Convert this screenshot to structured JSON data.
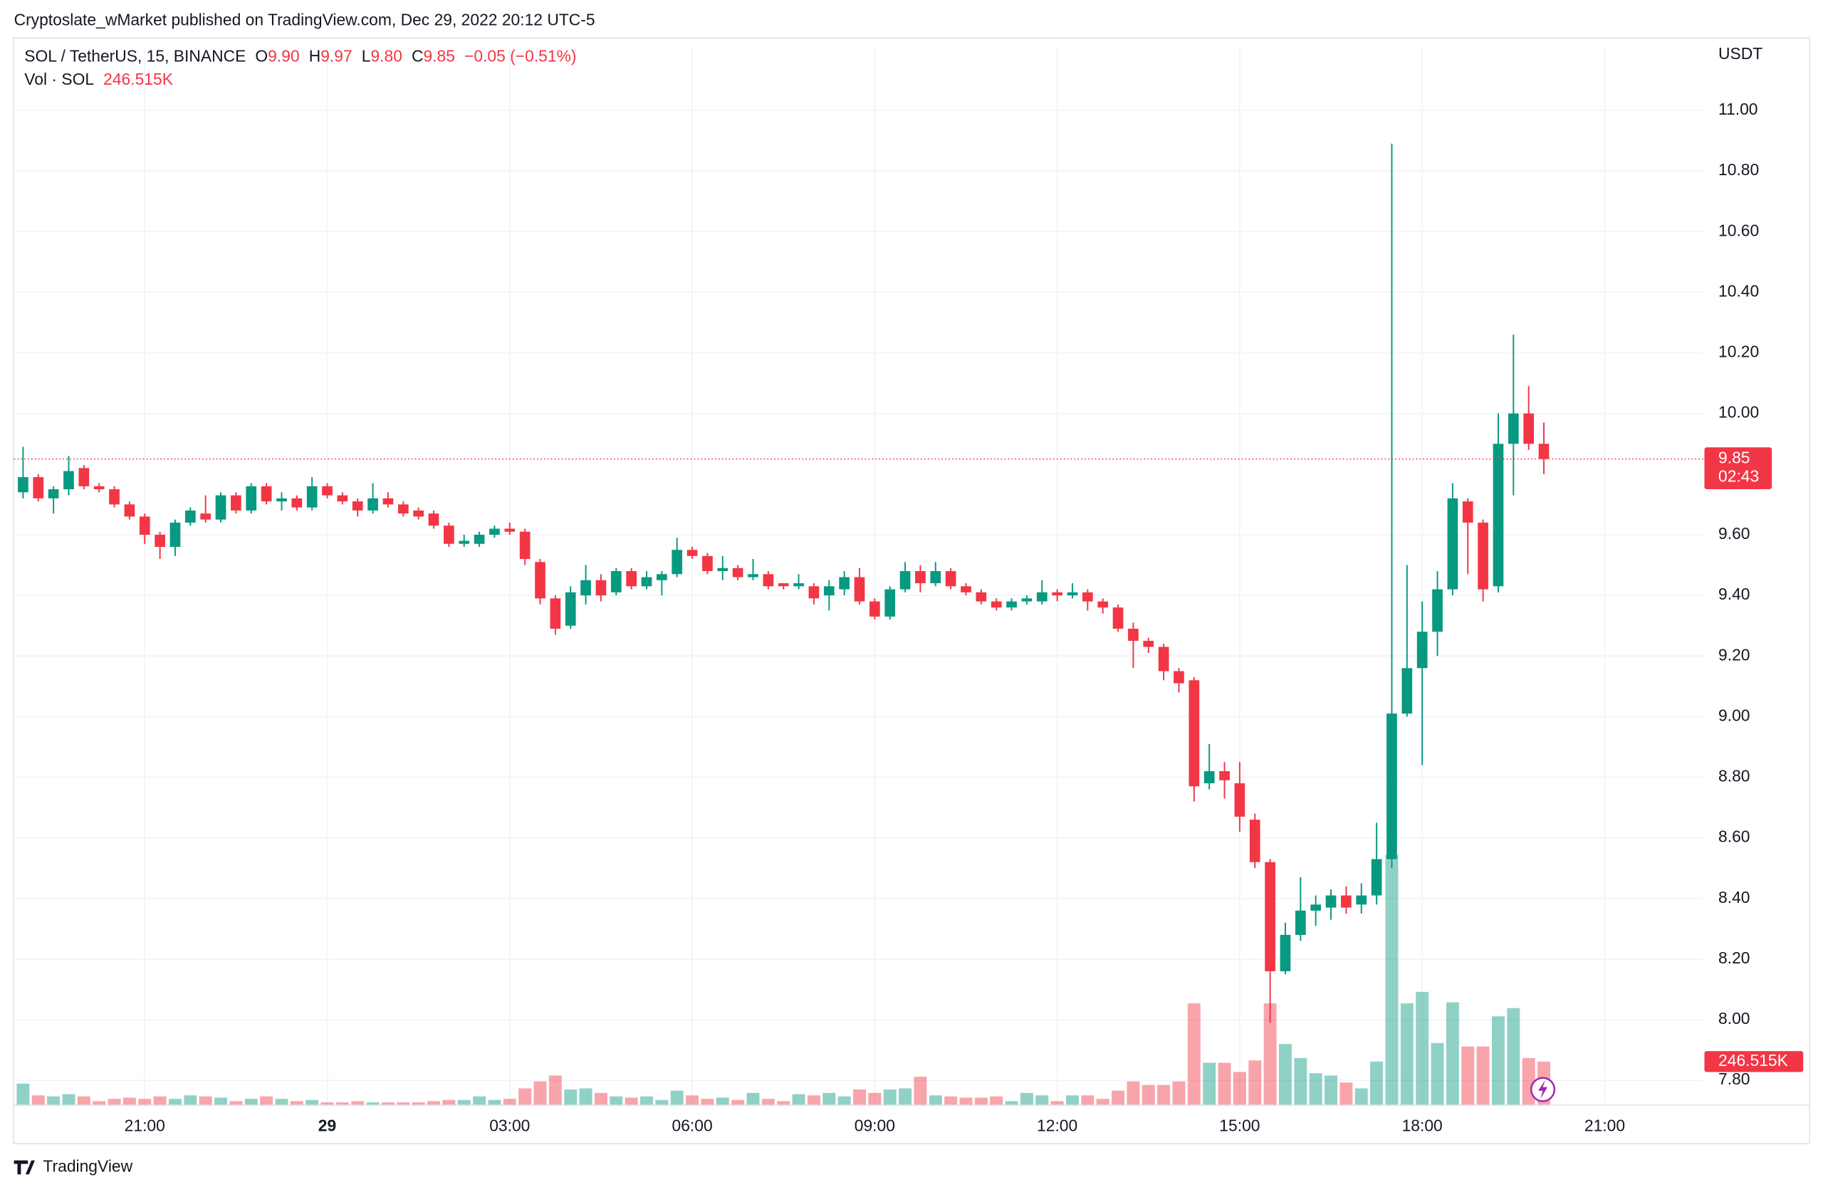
{
  "chart_data": {
    "type": "candlestick",
    "publisher": "Cryptoslate_wMarket published on TradingView.com, Dec 29, 2022 20:12 UTC-5",
    "symbol": "SOL / TetherUS, 15, BINANCE",
    "ohlc": [
      {
        "key": "O",
        "value": "9.90"
      },
      {
        "key": "H",
        "value": "9.97"
      },
      {
        "key": "L",
        "value": "9.80"
      },
      {
        "key": "C",
        "value": "9.85"
      }
    ],
    "change": "−0.05 (−0.51%)",
    "volume_name": "Vol · SOL",
    "volume_value": "246.515K",
    "currency": "USDT",
    "last_price": {
      "value": 9.85,
      "label": "9.85"
    },
    "countdown": "02:43",
    "brand": "TradingView",
    "up_color": "#089981",
    "down_color": "#f23645",
    "grid": true,
    "xlim": [
      18.85,
      46.62
    ],
    "ylim": [
      7.72,
      11.21
    ],
    "xticks": [
      {
        "value": 21,
        "label": "21:00"
      },
      {
        "value": 24,
        "label": "29"
      },
      {
        "value": 27,
        "label": "03:00"
      },
      {
        "value": 30,
        "label": "06:00"
      },
      {
        "value": 33,
        "label": "09:00"
      },
      {
        "value": 36,
        "label": "12:00"
      },
      {
        "value": 39,
        "label": "15:00"
      },
      {
        "value": 42,
        "label": "18:00"
      },
      {
        "value": 45,
        "label": "21:00"
      }
    ],
    "yticks": [
      {
        "value": 7.8,
        "label": "7.80"
      },
      {
        "value": 8.0,
        "label": "8.00"
      },
      {
        "value": 8.2,
        "label": "8.20"
      },
      {
        "value": 8.4,
        "label": "8.40"
      },
      {
        "value": 8.6,
        "label": "8.60"
      },
      {
        "value": 8.8,
        "label": "8.80"
      },
      {
        "value": 9.0,
        "label": "9.00"
      },
      {
        "value": 9.2,
        "label": "9.20"
      },
      {
        "value": 9.4,
        "label": "9.40"
      },
      {
        "value": 9.6,
        "label": "9.60"
      },
      {
        "value": 10.0,
        "label": "10.00"
      },
      {
        "value": 10.2,
        "label": "10.20"
      },
      {
        "value": 10.4,
        "label": "10.40"
      },
      {
        "value": 10.6,
        "label": "10.60"
      },
      {
        "value": 10.8,
        "label": "10.80"
      },
      {
        "value": 11.0,
        "label": "11.00"
      }
    ],
    "x": [
      19,
      19.25,
      19.5,
      19.75,
      20,
      20.25,
      20.5,
      20.75,
      21,
      21.25,
      21.5,
      21.75,
      22,
      22.25,
      22.5,
      22.75,
      23,
      23.25,
      23.5,
      23.75,
      24,
      24.25,
      24.5,
      24.75,
      25,
      25.25,
      25.5,
      25.75,
      26,
      26.25,
      26.5,
      26.75,
      27,
      27.25,
      27.5,
      27.75,
      28,
      28.25,
      28.5,
      28.75,
      29,
      29.25,
      29.5,
      29.75,
      30,
      30.25,
      30.5,
      30.75,
      31,
      31.25,
      31.5,
      31.75,
      32,
      32.25,
      32.5,
      32.75,
      33,
      33.25,
      33.5,
      33.75,
      34,
      34.25,
      34.5,
      34.75,
      35,
      35.25,
      35.5,
      35.75,
      36,
      36.25,
      36.5,
      36.75,
      37,
      37.25,
      37.5,
      37.75,
      38,
      38.25,
      38.5,
      38.75,
      39,
      39.25,
      39.5,
      39.75,
      40,
      40.25,
      40.5,
      40.75,
      41,
      41.25,
      41.5,
      41.75,
      42,
      42.25,
      42.5,
      42.75,
      43,
      43.25,
      43.5,
      43.75,
      44
    ],
    "open": [
      9.74,
      9.79,
      9.72,
      9.75,
      9.82,
      9.76,
      9.75,
      9.7,
      9.66,
      9.6,
      9.56,
      9.64,
      9.67,
      9.65,
      9.73,
      9.68,
      9.76,
      9.71,
      9.72,
      9.69,
      9.76,
      9.73,
      9.71,
      9.68,
      9.72,
      9.7,
      9.68,
      9.67,
      9.63,
      9.57,
      9.57,
      9.6,
      9.62,
      9.61,
      9.51,
      9.39,
      9.3,
      9.4,
      9.45,
      9.41,
      9.48,
      9.43,
      9.45,
      9.47,
      9.55,
      9.53,
      9.48,
      9.49,
      9.46,
      9.47,
      9.44,
      9.43,
      9.43,
      9.4,
      9.42,
      9.46,
      9.38,
      9.33,
      9.42,
      9.48,
      9.44,
      9.48,
      9.43,
      9.41,
      9.38,
      9.36,
      9.38,
      9.38,
      9.41,
      9.4,
      9.41,
      9.38,
      9.36,
      9.29,
      9.25,
      9.23,
      9.15,
      9.12,
      8.78,
      8.82,
      8.78,
      8.66,
      8.52,
      8.16,
      8.28,
      8.36,
      8.37,
      8.41,
      8.38,
      8.41,
      8.53,
      9.01,
      9.16,
      9.28,
      9.42,
      9.71,
      9.64,
      9.43,
      9.9,
      10.0,
      9.9
    ],
    "high": [
      9.89,
      9.8,
      9.76,
      9.86,
      9.83,
      9.77,
      9.76,
      9.71,
      9.67,
      9.61,
      9.65,
      9.69,
      9.73,
      9.74,
      9.74,
      9.77,
      9.77,
      9.74,
      9.73,
      9.79,
      9.77,
      9.74,
      9.72,
      9.77,
      9.74,
      9.71,
      9.69,
      9.68,
      9.64,
      9.6,
      9.61,
      9.63,
      9.64,
      9.62,
      9.52,
      9.4,
      9.43,
      9.5,
      9.47,
      9.49,
      9.49,
      9.48,
      9.48,
      9.59,
      9.56,
      9.54,
      9.53,
      9.5,
      9.52,
      9.48,
      9.44,
      9.47,
      9.44,
      9.45,
      9.48,
      9.49,
      9.39,
      9.43,
      9.51,
      9.5,
      9.51,
      9.49,
      9.44,
      9.42,
      9.39,
      9.39,
      9.4,
      9.45,
      9.42,
      9.44,
      9.42,
      9.39,
      9.37,
      9.31,
      9.26,
      9.24,
      9.16,
      9.13,
      8.91,
      8.85,
      8.85,
      8.68,
      8.53,
      8.32,
      8.47,
      8.41,
      8.43,
      8.44,
      8.45,
      8.65,
      10.89,
      9.5,
      9.38,
      9.48,
      9.77,
      9.72,
      9.65,
      10.0,
      10.26,
      10.09,
      9.97
    ],
    "low": [
      9.72,
      9.71,
      9.67,
      9.73,
      9.75,
      9.74,
      9.69,
      9.65,
      9.57,
      9.52,
      9.53,
      9.63,
      9.64,
      9.64,
      9.67,
      9.67,
      9.7,
      9.68,
      9.68,
      9.68,
      9.72,
      9.7,
      9.66,
      9.67,
      9.69,
      9.66,
      9.65,
      9.62,
      9.56,
      9.56,
      9.56,
      9.59,
      9.6,
      9.5,
      9.37,
      9.27,
      9.29,
      9.37,
      9.38,
      9.4,
      9.42,
      9.42,
      9.4,
      9.46,
      9.52,
      9.47,
      9.45,
      9.45,
      9.45,
      9.42,
      9.42,
      9.42,
      9.37,
      9.35,
      9.4,
      9.37,
      9.32,
      9.32,
      9.41,
      9.41,
      9.43,
      9.42,
      9.4,
      9.37,
      9.35,
      9.35,
      9.37,
      9.37,
      9.38,
      9.39,
      9.35,
      9.34,
      9.28,
      9.16,
      9.21,
      9.12,
      9.08,
      8.72,
      8.76,
      8.73,
      8.62,
      8.5,
      7.99,
      8.15,
      8.26,
      8.31,
      8.33,
      8.35,
      8.35,
      8.38,
      8.5,
      9.0,
      8.84,
      9.2,
      9.4,
      9.47,
      9.38,
      9.41,
      9.73,
      9.88,
      9.8
    ],
    "close": [
      9.79,
      9.72,
      9.75,
      9.81,
      9.76,
      9.75,
      9.7,
      9.66,
      9.6,
      9.56,
      9.64,
      9.68,
      9.65,
      9.73,
      9.68,
      9.76,
      9.71,
      9.72,
      9.69,
      9.76,
      9.73,
      9.71,
      9.68,
      9.72,
      9.7,
      9.67,
      9.66,
      9.63,
      9.57,
      9.58,
      9.6,
      9.62,
      9.61,
      9.52,
      9.39,
      9.29,
      9.41,
      9.45,
      9.4,
      9.48,
      9.43,
      9.46,
      9.47,
      9.55,
      9.53,
      9.48,
      9.49,
      9.46,
      9.47,
      9.43,
      9.43,
      9.44,
      9.39,
      9.43,
      9.46,
      9.38,
      9.33,
      9.42,
      9.48,
      9.44,
      9.48,
      9.43,
      9.41,
      9.38,
      9.36,
      9.38,
      9.39,
      9.41,
      9.4,
      9.41,
      9.38,
      9.36,
      9.29,
      9.25,
      9.23,
      9.15,
      9.11,
      8.77,
      8.82,
      8.79,
      8.67,
      8.52,
      8.16,
      8.28,
      8.36,
      8.38,
      8.41,
      8.37,
      8.41,
      8.53,
      9.01,
      9.16,
      9.28,
      9.42,
      9.72,
      9.64,
      9.42,
      9.9,
      10.0,
      9.9,
      9.85
    ],
    "volume": [
      120000,
      53000,
      47000,
      60000,
      47000,
      20000,
      33000,
      40000,
      33000,
      47000,
      33000,
      53000,
      47000,
      40000,
      20000,
      33000,
      47000,
      33000,
      20000,
      27000,
      13000,
      13000,
      20000,
      13000,
      13000,
      13000,
      13000,
      20000,
      27000,
      27000,
      47000,
      27000,
      33000,
      93000,
      133000,
      167000,
      87000,
      93000,
      67000,
      47000,
      40000,
      47000,
      27000,
      80000,
      53000,
      33000,
      40000,
      27000,
      67000,
      33000,
      20000,
      60000,
      53000,
      67000,
      47000,
      87000,
      67000,
      87000,
      93000,
      160000,
      53000,
      47000,
      40000,
      40000,
      47000,
      20000,
      67000,
      53000,
      20000,
      53000,
      53000,
      33000,
      80000,
      133000,
      113000,
      113000,
      133000,
      580000,
      240000,
      240000,
      187000,
      253000,
      580000,
      347000,
      267000,
      180000,
      167000,
      127000,
      93000,
      247000,
      1432000,
      580000,
      646000,
      353000,
      586000,
      333000,
      333000,
      506000,
      553000,
      267000,
      246515
    ]
  }
}
